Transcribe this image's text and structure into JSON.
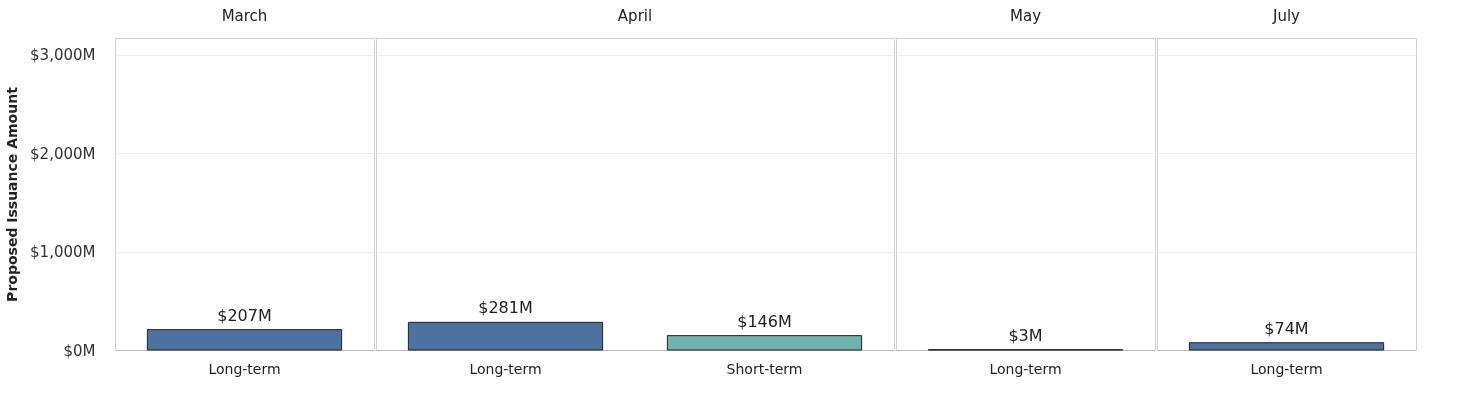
{
  "chart_data": [
    {
      "type": "bar",
      "title": "March",
      "ylabel": "Proposed Issuance Amount",
      "categories": [
        "Long-term"
      ],
      "values": [
        207
      ],
      "colors": [
        "#4e72a0"
      ],
      "value_labels": [
        "$207M"
      ],
      "ylim": [
        0,
        3170
      ],
      "yticks": [
        {
          "value": 0,
          "label": "$0M"
        },
        {
          "value": 1000,
          "label": "$1,000M"
        },
        {
          "value": 2000,
          "label": "$2,000M"
        },
        {
          "value": 3000,
          "label": "$3,000M"
        }
      ],
      "grid": "y"
    },
    {
      "type": "bar",
      "title": "April",
      "categories": [
        "Long-term",
        "Short-term"
      ],
      "values": [
        281,
        146
      ],
      "colors": [
        "#4e72a0",
        "#6fb3aa"
      ],
      "value_labels": [
        "$281M",
        "$146M"
      ],
      "ylim": [
        0,
        3170
      ],
      "yticks": [
        0,
        1000,
        2000,
        3000
      ],
      "grid": "y",
      "tick_labels": "x"
    },
    {
      "type": "bar",
      "title": "May",
      "categories": [
        "Long-term"
      ],
      "values": [
        3
      ],
      "colors": [
        "#4e72a0"
      ],
      "value_labels": [
        "$3M"
      ],
      "ylim": [
        0,
        3170
      ],
      "yticks": [
        0,
        1000,
        2000,
        3000
      ],
      "grid": "y",
      "tick_labels": "x"
    },
    {
      "type": "bar",
      "title": "July",
      "categories": [
        "Long-term"
      ],
      "values": [
        74
      ],
      "colors": [
        "#4e72a0"
      ],
      "value_labels": [
        "$74M"
      ],
      "ylim": [
        0,
        3170
      ],
      "yticks": [
        0,
        1000,
        2000,
        3000
      ],
      "grid": "y",
      "tick_labels": "x"
    }
  ]
}
